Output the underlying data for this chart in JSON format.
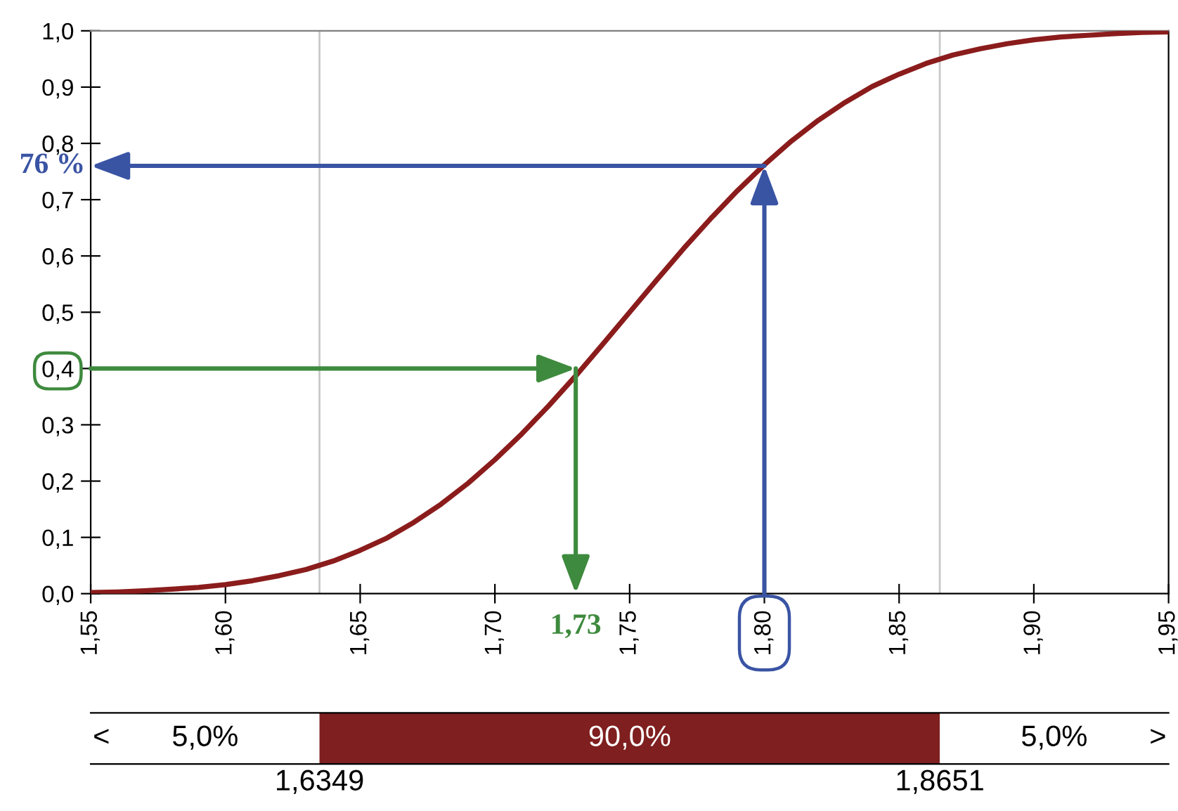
{
  "chart_data": [
    {
      "type": "line",
      "x": [
        1.55,
        1.56,
        1.57,
        1.58,
        1.59,
        1.6,
        1.61,
        1.62,
        1.63,
        1.64,
        1.65,
        1.66,
        1.67,
        1.68,
        1.69,
        1.7,
        1.71,
        1.72,
        1.73,
        1.74,
        1.75,
        1.76,
        1.77,
        1.78,
        1.79,
        1.8,
        1.81,
        1.82,
        1.83,
        1.84,
        1.85,
        1.86,
        1.87,
        1.88,
        1.89,
        1.9,
        1.91,
        1.92,
        1.93,
        1.94,
        1.95
      ],
      "series": [
        {
          "color": "#8b1c1c",
          "values": [
            0.002,
            0.003,
            0.005,
            0.008,
            0.011,
            0.016,
            0.023,
            0.032,
            0.043,
            0.058,
            0.077,
            0.099,
            0.127,
            0.159,
            0.196,
            0.238,
            0.284,
            0.334,
            0.387,
            0.443,
            0.5,
            0.557,
            0.613,
            0.666,
            0.716,
            0.762,
            0.804,
            0.841,
            0.873,
            0.901,
            0.923,
            0.942,
            0.957,
            0.968,
            0.977,
            0.984,
            0.989,
            0.992,
            0.995,
            0.997,
            0.998
          ]
        }
      ],
      "xlim": [
        1.55,
        1.95
      ],
      "xticks": [
        {
          "value": 1.55,
          "label": "1,55"
        },
        {
          "value": 1.6,
          "label": "1,60"
        },
        {
          "value": 1.65,
          "label": "1,65"
        },
        {
          "value": 1.7,
          "label": "1,70"
        },
        {
          "value": 1.75,
          "label": "1,75"
        },
        {
          "value": 1.8,
          "label": "1,80"
        },
        {
          "value": 1.85,
          "label": "1,85"
        },
        {
          "value": 1.9,
          "label": "1,90"
        },
        {
          "value": 1.95,
          "label": "1,95"
        }
      ],
      "ylim": [
        0,
        1
      ],
      "yticks": [
        {
          "value": 0,
          "label": "0,0"
        },
        {
          "value": 0.1,
          "label": "0,1"
        },
        {
          "value": 0.2,
          "label": "0,2"
        },
        {
          "value": 0.3,
          "label": "0,3"
        },
        {
          "value": 0.4,
          "label": "0,4"
        },
        {
          "value": 0.5,
          "label": "0,5"
        },
        {
          "value": 0.6,
          "label": "0,6"
        },
        {
          "value": 0.7,
          "label": "0,7"
        },
        {
          "value": 0.8,
          "label": "0,8"
        },
        {
          "value": 0.9,
          "label": "0,9"
        },
        {
          "value": 1,
          "label": "1,0"
        }
      ],
      "ref_lines": [
        {
          "axis": "x",
          "value": 1.6349,
          "color": "#c8c8c8"
        },
        {
          "axis": "x",
          "value": 1.8651,
          "color": "#c8c8c8"
        }
      ],
      "annotations": [
        {
          "text": "76 %",
          "x": 1.8,
          "y": 0.76
        },
        {
          "text": "1,73",
          "x": 1.73,
          "y": 0.4
        }
      ],
      "grid": false,
      "marker": "none",
      "line_style": "solid"
    },
    {
      "type": "other",
      "colors": [
        "#ffffff",
        "#7f1f1f",
        "#ffffff"
      ],
      "annotations": [
        "<",
        "5,0%",
        "90,0%",
        "5,0%",
        ">",
        "1,6349",
        "1,8651"
      ]
    }
  ]
}
